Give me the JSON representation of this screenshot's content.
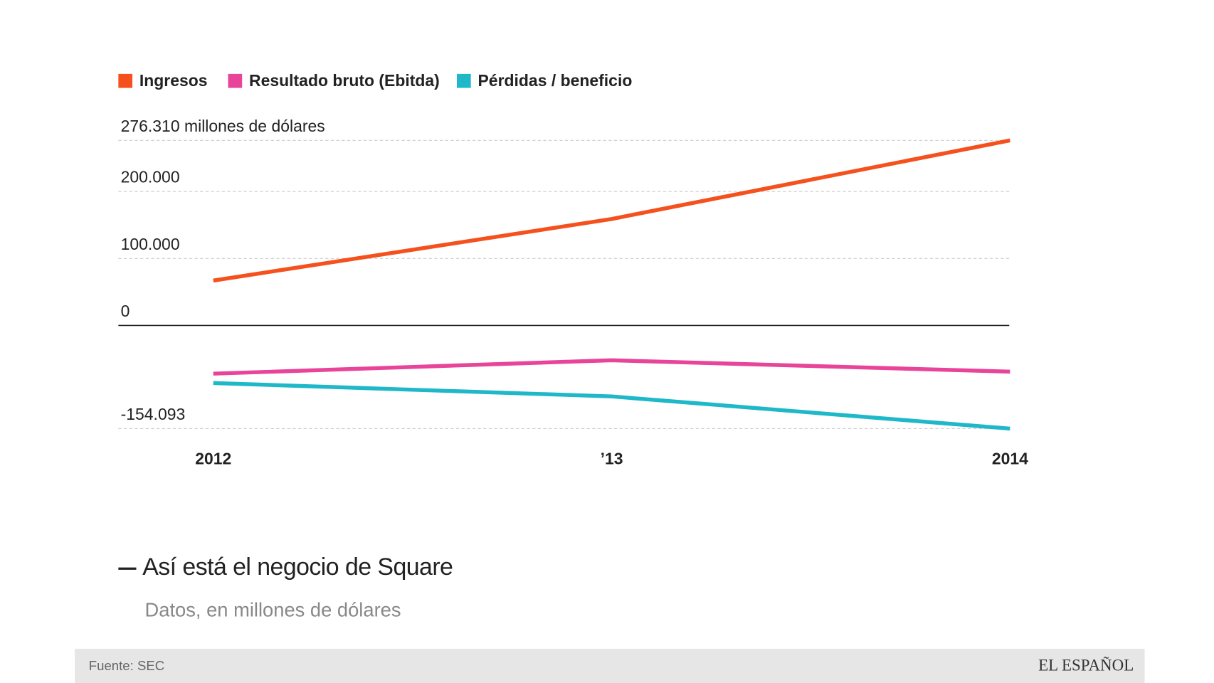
{
  "chart_data": {
    "type": "line",
    "title": "Así está el negocio de Square",
    "subtitle": "Datos, en millones de dólares",
    "source": "Fuente: SEC",
    "brand": "EL ESPAÑOL",
    "categories": [
      "2012",
      "’13",
      "2014"
    ],
    "series": [
      {
        "name": "Ingresos",
        "color": "#f4511e",
        "values": [
          67000,
          159000,
          276310
        ]
      },
      {
        "name": "Resultado bruto (Ebitda)",
        "color": "#e8449a",
        "values": [
          -72000,
          -52000,
          -69000
        ]
      },
      {
        "name": "Pérdidas / beneficio",
        "color": "#1fb8c9",
        "values": [
          -86000,
          -106000,
          -154093
        ]
      }
    ],
    "ylim": [
      -154093,
      276310
    ],
    "yticks": [
      {
        "value": -154093,
        "label": "-154.093"
      },
      0,
      {
        "value": 100000,
        "label": "100.000"
      },
      {
        "value": 200000,
        "label": "200.000"
      },
      {
        "value": 276310,
        "label": "276.310 millones de dólares"
      }
    ],
    "grid": true
  }
}
